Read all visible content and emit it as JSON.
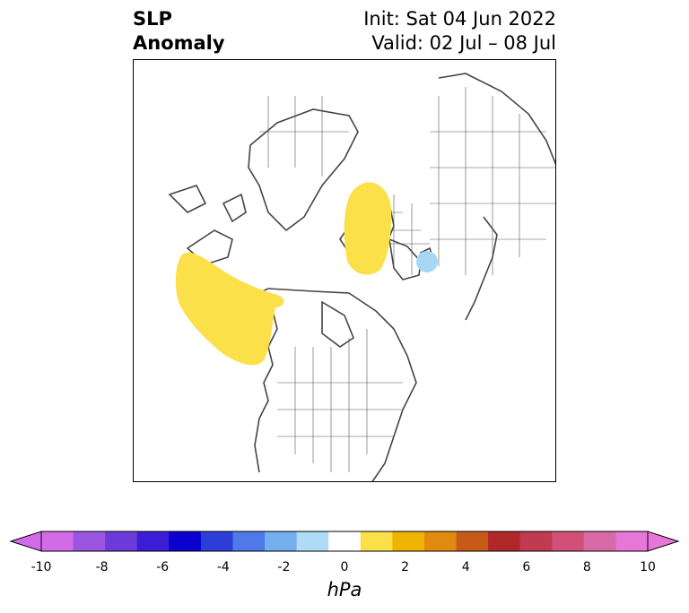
{
  "title": {
    "line1": "SLP",
    "line2": "Anomaly",
    "init": "Init: Sat 04 Jun 2022",
    "valid": "Valid: 02 Jul – 08 Jul"
  },
  "map": {
    "projection": "north-polar-stereographic",
    "anomaly_regions": [
      {
        "name": "north-pacific-positive-anomaly",
        "sign": "positive",
        "color": "#fbe04a"
      },
      {
        "name": "scandinavia-positive-anomaly",
        "sign": "positive",
        "color": "#fbe04a"
      },
      {
        "name": "caspian-negative-anomaly",
        "sign": "negative",
        "color": "#a8d7f6"
      }
    ]
  },
  "colorbar": {
    "unit": "hPa",
    "tick_labels": [
      "-10",
      "-8",
      "-6",
      "-4",
      "-2",
      "0",
      "2",
      "4",
      "6",
      "8",
      "10"
    ],
    "colors": [
      "#d36be8",
      "#9b55e0",
      "#6b3ad8",
      "#3a1ed5",
      "#0a00d0",
      "#2d3ed8",
      "#4f78e8",
      "#74b0f0",
      "#aedcf7",
      "#ffffff",
      "#fbe04a",
      "#f0b400",
      "#e08a10",
      "#c85a18",
      "#b02828",
      "#c03a50",
      "#d0507a",
      "#d86aa8",
      "#e676d8"
    ],
    "min_color": "#d36be8",
    "max_color": "#e676d8"
  }
}
